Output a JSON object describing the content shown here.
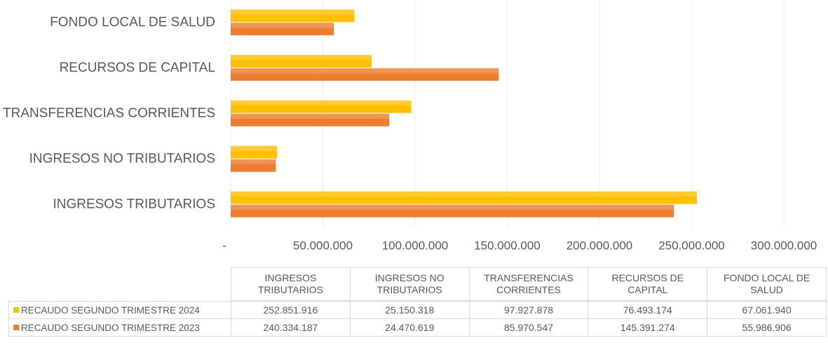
{
  "chart_data": {
    "type": "bar",
    "orientation": "horizontal",
    "categories": [
      "INGRESOS TRIBUTARIOS",
      "INGRESOS NO TRIBUTARIOS",
      "TRANSFERENCIAS CORRIENTES",
      "RECURSOS DE CAPITAL",
      "FONDO LOCAL DE SALUD"
    ],
    "series": [
      {
        "name": "RECAUDO SEGUNDO TRIMESTRE 2024",
        "color": "#FFC000",
        "values": [
          252851916,
          25150318,
          97927878,
          76493174,
          67061940
        ],
        "value_labels": [
          "252.851.916",
          "25.150.318",
          "97.927.878",
          "76.493.174",
          "67.061.940"
        ]
      },
      {
        "name": "RECAUDO SEGUNDO TRIMESTRE 2023",
        "color": "#ED7D31",
        "values": [
          240334187,
          24470619,
          85970547,
          145391274,
          55986906
        ],
        "value_labels": [
          "240.334.187",
          "24.470.619",
          "85.970.547",
          "145.391.274",
          "55.986.906"
        ]
      }
    ],
    "xlim": [
      0,
      300000000
    ],
    "xticks": [
      {
        "value": 0,
        "label": "-"
      },
      {
        "value": 50000000,
        "label": "50.000.000"
      },
      {
        "value": 100000000,
        "label": "100.000.000"
      },
      {
        "value": 150000000,
        "label": "150.000.000"
      },
      {
        "value": 200000000,
        "label": "200.000.000"
      },
      {
        "value": 250000000,
        "label": "250.000.000"
      },
      {
        "value": 300000000,
        "label": "300.000.000"
      }
    ],
    "grid": true,
    "data_table": true
  }
}
